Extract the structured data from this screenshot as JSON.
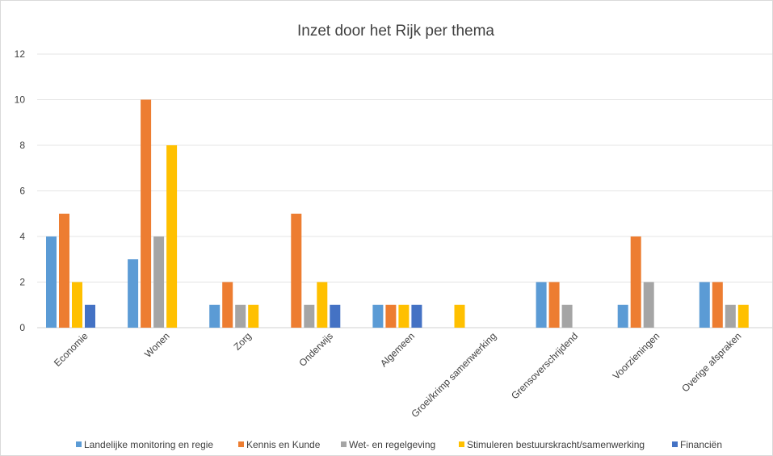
{
  "chart_data": {
    "type": "bar",
    "title": "Inzet door het Rijk per thema",
    "xlabel": "",
    "ylabel": "",
    "ylim": [
      0,
      12
    ],
    "yticks": [
      0,
      2,
      4,
      6,
      8,
      10,
      12
    ],
    "grid": true,
    "legend_position": "bottom",
    "categories": [
      "Economie",
      "Wonen",
      "Zorg",
      "Onderwijs",
      "Algemeen",
      "Groei/krimp samenwerking",
      "Grensoverschrijdend",
      "Voorzieningen",
      "Overige afspraken"
    ],
    "series": [
      {
        "name": "Landelijke monitoring en regie",
        "color": "#5b9bd5",
        "values": [
          4,
          3,
          1,
          0,
          1,
          0,
          2,
          1,
          2
        ]
      },
      {
        "name": "Kennis en Kunde",
        "color": "#ed7d31",
        "values": [
          5,
          10,
          2,
          5,
          1,
          0,
          2,
          4,
          2
        ]
      },
      {
        "name": "Wet- en regelgeving",
        "color": "#a5a5a5",
        "values": [
          0,
          4,
          1,
          1,
          0,
          0,
          1,
          2,
          1
        ]
      },
      {
        "name": "Stimuleren bestuurskracht/samenwerking",
        "color": "#ffc000",
        "values": [
          2,
          8,
          1,
          2,
          1,
          1,
          0,
          0,
          1
        ]
      },
      {
        "name": "Financiën",
        "color": "#4472c4",
        "values": [
          1,
          0,
          0,
          1,
          1,
          0,
          0,
          0,
          0
        ]
      }
    ]
  }
}
